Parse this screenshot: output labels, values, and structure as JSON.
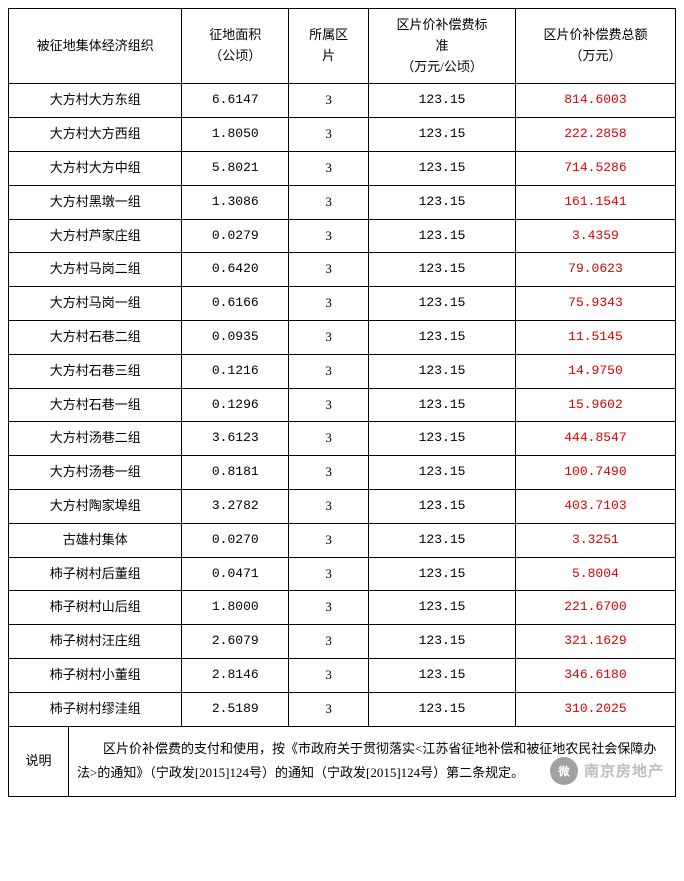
{
  "table": {
    "headers": {
      "org": "被征地集体经济组织",
      "area": "征地面积\n（公顷）",
      "zone": "所属区\n片",
      "rate": "区片价补偿费标\n准\n（万元/公顷）",
      "total": "区片价补偿费总额\n（万元）"
    },
    "col_widths": [
      "26%",
      "16%",
      "12%",
      "22%",
      "24%"
    ],
    "header_bg": "#ffffff",
    "total_color": "#cc0000",
    "rows": [
      {
        "org": "大方村大方东组",
        "area": "6.6147",
        "zone": "3",
        "rate": "123.15",
        "total": "814.6003"
      },
      {
        "org": "大方村大方西组",
        "area": "1.8050",
        "zone": "3",
        "rate": "123.15",
        "total": "222.2858"
      },
      {
        "org": "大方村大方中组",
        "area": "5.8021",
        "zone": "3",
        "rate": "123.15",
        "total": "714.5286"
      },
      {
        "org": "大方村黑墩一组",
        "area": "1.3086",
        "zone": "3",
        "rate": "123.15",
        "total": "161.1541"
      },
      {
        "org": "大方村芦家庄组",
        "area": "0.0279",
        "zone": "3",
        "rate": "123.15",
        "total": "3.4359"
      },
      {
        "org": "大方村马岗二组",
        "area": "0.6420",
        "zone": "3",
        "rate": "123.15",
        "total": "79.0623"
      },
      {
        "org": "大方村马岗一组",
        "area": "0.6166",
        "zone": "3",
        "rate": "123.15",
        "total": "75.9343"
      },
      {
        "org": "大方村石巷二组",
        "area": "0.0935",
        "zone": "3",
        "rate": "123.15",
        "total": "11.5145"
      },
      {
        "org": "大方村石巷三组",
        "area": "0.1216",
        "zone": "3",
        "rate": "123.15",
        "total": "14.9750"
      },
      {
        "org": "大方村石巷一组",
        "area": "0.1296",
        "zone": "3",
        "rate": "123.15",
        "total": "15.9602"
      },
      {
        "org": "大方村汤巷二组",
        "area": "3.6123",
        "zone": "3",
        "rate": "123.15",
        "total": "444.8547"
      },
      {
        "org": "大方村汤巷一组",
        "area": "0.8181",
        "zone": "3",
        "rate": "123.15",
        "total": "100.7490"
      },
      {
        "org": "大方村陶家埠组",
        "area": "3.2782",
        "zone": "3",
        "rate": "123.15",
        "total": "403.7103"
      },
      {
        "org": "古雄村集体",
        "area": "0.0270",
        "zone": "3",
        "rate": "123.15",
        "total": "3.3251"
      },
      {
        "org": "柿子树村后董组",
        "area": "0.0471",
        "zone": "3",
        "rate": "123.15",
        "total": "5.8004"
      },
      {
        "org": "柿子树村山后组",
        "area": "1.8000",
        "zone": "3",
        "rate": "123.15",
        "total": "221.6700"
      },
      {
        "org": "柿子树村汪庄组",
        "area": "2.6079",
        "zone": "3",
        "rate": "123.15",
        "total": "321.1629"
      },
      {
        "org": "柿子树村小董组",
        "area": "2.8146",
        "zone": "3",
        "rate": "123.15",
        "total": "346.6180"
      },
      {
        "org": "柿子树村缪洼组",
        "area": "2.5189",
        "zone": "3",
        "rate": "123.15",
        "total": "310.2025"
      }
    ]
  },
  "note": {
    "label": "说明",
    "text": "区片价补偿费的支付和使用，按《市政府关于贯彻落实<江苏省征地补偿和被征地农民社会保障办法>的通知》（宁政发[2015]124号）的通知（宁政发[2015]124号）第二条规定。"
  },
  "watermark": {
    "icon": "微",
    "text": "南京房地产"
  }
}
